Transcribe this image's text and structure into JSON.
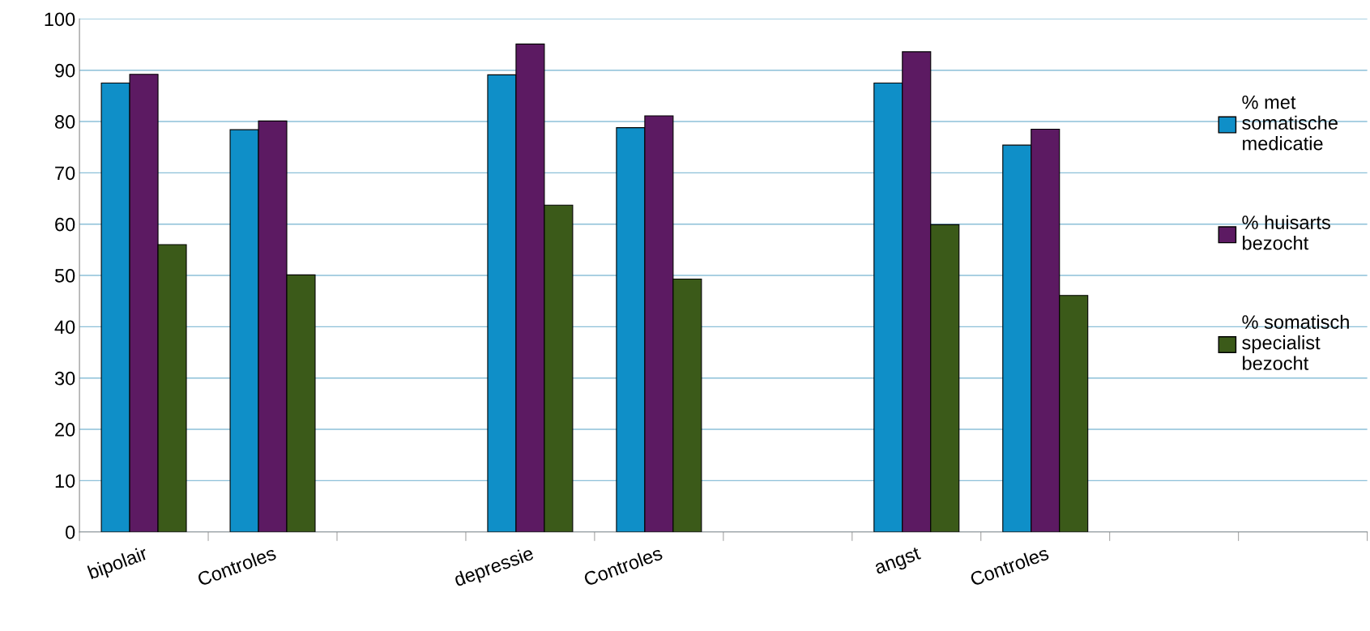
{
  "chart_data": {
    "type": "bar",
    "categories": [
      "bipolair",
      "Controles",
      null,
      "depressie",
      "Controles",
      null,
      "angst",
      "Controles",
      null,
      null
    ],
    "series": [
      {
        "name": "% met\nsomatische\nmedicatie",
        "color": "#0f8fc8",
        "values": [
          87.5,
          78.4,
          null,
          89.1,
          78.8,
          null,
          87.5,
          75.4,
          null,
          null
        ]
      },
      {
        "name": "% huisarts\nbezocht",
        "color": "#5c1a62",
        "values": [
          89.2,
          80.1,
          null,
          95.1,
          81.1,
          null,
          93.6,
          78.5,
          null,
          null
        ]
      },
      {
        "name": "% somatisch\nspecialist\nbezocht",
        "color": "#3b5a19",
        "values": [
          56.0,
          50.1,
          null,
          63.7,
          49.3,
          null,
          59.9,
          46.1,
          null,
          null
        ]
      }
    ],
    "ylim": [
      0,
      100
    ],
    "yticks": [
      0,
      10,
      20,
      30,
      40,
      50,
      60,
      70,
      80,
      90,
      100
    ],
    "grid": "y",
    "legend": "right"
  }
}
